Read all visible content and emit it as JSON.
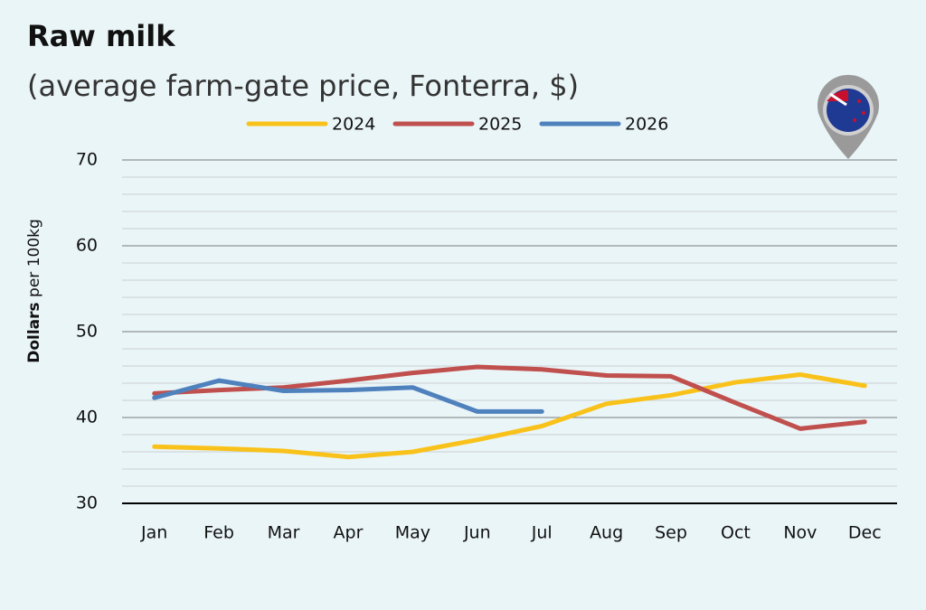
{
  "chart_data": {
    "type": "line",
    "title": "Raw milk",
    "subtitle": "(average farm-gate price, Fonterra, $)",
    "ylabel": {
      "bold": "Dollars",
      "rest": "per 100kg"
    },
    "categories": [
      "Jan",
      "Feb",
      "Mar",
      "Apr",
      "May",
      "Jun",
      "Jul",
      "Aug",
      "Sep",
      "Oct",
      "Nov",
      "Dec"
    ],
    "series": [
      {
        "name": "2024",
        "color": "#f9c21a",
        "values": [
          36.6,
          36.4,
          36.1,
          35.4,
          36.0,
          37.4,
          39.0,
          41.6,
          42.6,
          44.1,
          45.0,
          43.7
        ]
      },
      {
        "name": "2025",
        "color": "#c0504d",
        "values": [
          42.8,
          43.2,
          43.5,
          44.3,
          45.2,
          45.9,
          45.6,
          44.9,
          44.8,
          41.7,
          38.7,
          39.5
        ]
      },
      {
        "name": "2026",
        "color": "#4f81bd",
        "values": [
          42.3,
          44.3,
          43.1,
          43.2,
          43.5,
          40.7,
          40.7,
          null,
          null,
          null,
          null,
          null
        ]
      }
    ],
    "ylim": [
      30,
      70
    ],
    "yticks": [
      30,
      40,
      50,
      60,
      70
    ],
    "minor_yticks": [
      32,
      34,
      36,
      38,
      42,
      44,
      46,
      48,
      52,
      54,
      56,
      58,
      62,
      64,
      66,
      68
    ],
    "grid": true,
    "legend": "top"
  }
}
